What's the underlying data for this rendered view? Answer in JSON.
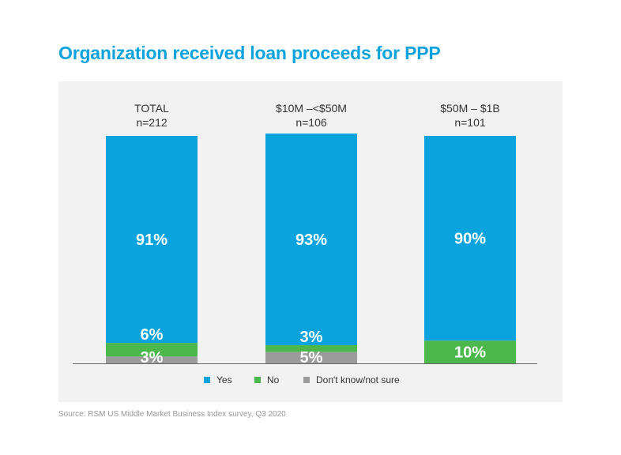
{
  "title": "Organization received loan proceeds for PPP",
  "source": "Source: RSM US Middle Market Business Index survey, Q3 2020",
  "colors": {
    "yes": "#0aa3de",
    "no": "#4cb84c",
    "unsure": "#9b9b9b"
  },
  "chart_data": {
    "type": "bar",
    "stacked": true,
    "title": "Organization received loan proceeds for PPP",
    "categories": [
      {
        "name": "TOTAL",
        "n": "n=212"
      },
      {
        "name": "$10M –<$50M",
        "n": "n=106"
      },
      {
        "name": "$50M – $1B",
        "n": "n=101"
      }
    ],
    "series": [
      {
        "name": "Don't know/not sure",
        "key": "unsure",
        "values": [
          3,
          5,
          0
        ],
        "labels": [
          "3%",
          "5%",
          ""
        ]
      },
      {
        "name": "No",
        "key": "no",
        "values": [
          6,
          3,
          10
        ],
        "labels": [
          "6%",
          "3%",
          "10%"
        ]
      },
      {
        "name": "Yes",
        "key": "yes",
        "values": [
          91,
          93,
          90
        ],
        "labels": [
          "91%",
          "93%",
          "90%"
        ]
      }
    ],
    "ylim": [
      0,
      100
    ],
    "legend": [
      {
        "label": "Yes",
        "key": "yes"
      },
      {
        "label": "No",
        "key": "no"
      },
      {
        "label": "Don't know/not sure",
        "key": "unsure"
      }
    ],
    "legend_position": "bottom",
    "grid": false
  }
}
